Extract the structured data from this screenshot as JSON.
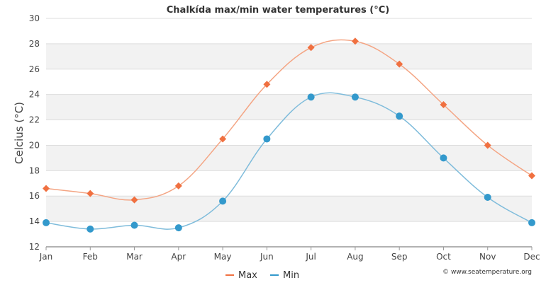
{
  "chart_data": {
    "type": "line",
    "title": "Chalkída max/min water temperatures (°C)",
    "xlabel": "",
    "ylabel": "Celcius (°C)",
    "categories": [
      "Jan",
      "Feb",
      "Mar",
      "Apr",
      "May",
      "Jun",
      "Jul",
      "Aug",
      "Sep",
      "Oct",
      "Nov",
      "Dec"
    ],
    "ylim": [
      12,
      30
    ],
    "yticks": [
      12,
      14,
      16,
      18,
      20,
      22,
      24,
      26,
      28,
      30
    ],
    "grid": "horizontal alternating bands",
    "legend_position": "bottom-center",
    "series": [
      {
        "name": "Max",
        "color": "#f07040",
        "line_color": "#f4a584",
        "marker": "diamond",
        "values": [
          16.6,
          16.2,
          15.7,
          16.8,
          20.5,
          24.8,
          27.7,
          28.2,
          26.4,
          23.2,
          20.0,
          17.6
        ]
      },
      {
        "name": "Min",
        "color": "#3399cc",
        "line_color": "#7fbcdb",
        "marker": "circle",
        "values": [
          13.9,
          13.4,
          13.7,
          13.5,
          15.6,
          20.5,
          23.8,
          23.8,
          22.3,
          19.0,
          15.9,
          13.9
        ]
      }
    ],
    "credit": "© www.seatemperature.org"
  }
}
